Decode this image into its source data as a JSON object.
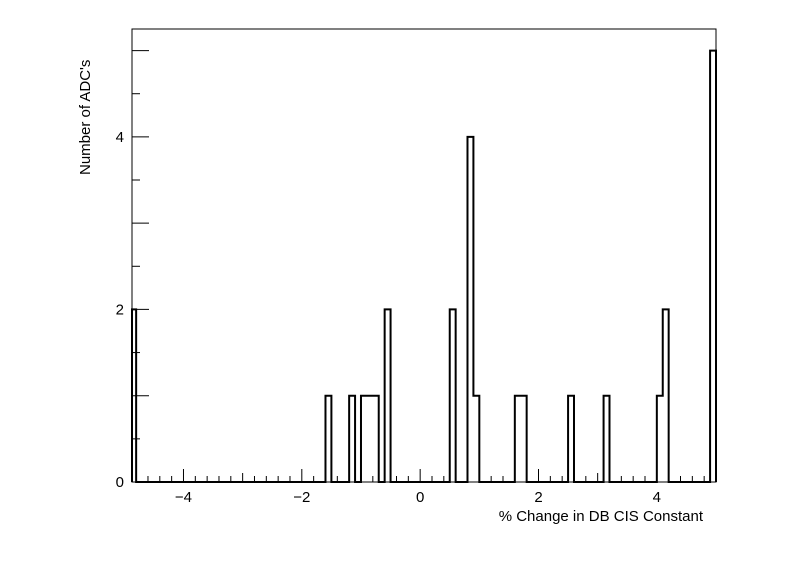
{
  "chart_data": {
    "type": "histogram",
    "xlabel": "% Change in DB CIS Constant",
    "ylabel": "Number of ADC's",
    "xlim": [
      -4.87,
      5.0
    ],
    "ylim": [
      0,
      5.25
    ],
    "bin_width": 0.1,
    "xticks": [
      -4,
      -2,
      0,
      2,
      4
    ],
    "xtick_labels": [
      "−4",
      "−2",
      "0",
      "2",
      "4"
    ],
    "yticks": [
      0,
      2,
      4
    ],
    "ytick_labels": [
      "0",
      "2",
      "4"
    ],
    "bins": [
      {
        "x0": -4.9,
        "x1": -4.8,
        "count": 2
      },
      {
        "x0": -1.6,
        "x1": -1.5,
        "count": 1
      },
      {
        "x0": -1.2,
        "x1": -1.1,
        "count": 1
      },
      {
        "x0": -1.0,
        "x1": -0.9,
        "count": 1
      },
      {
        "x0": -0.9,
        "x1": -0.8,
        "count": 1
      },
      {
        "x0": -0.8,
        "x1": -0.7,
        "count": 1
      },
      {
        "x0": -0.6,
        "x1": -0.5,
        "count": 2
      },
      {
        "x0": 0.5,
        "x1": 0.6,
        "count": 2
      },
      {
        "x0": 0.8,
        "x1": 0.9,
        "count": 4
      },
      {
        "x0": 0.9,
        "x1": 1.0,
        "count": 1
      },
      {
        "x0": 1.6,
        "x1": 1.7,
        "count": 1
      },
      {
        "x0": 1.7,
        "x1": 1.8,
        "count": 1
      },
      {
        "x0": 2.5,
        "x1": 2.6,
        "count": 1
      },
      {
        "x0": 3.1,
        "x1": 3.2,
        "count": 1
      },
      {
        "x0": 4.0,
        "x1": 4.1,
        "count": 1
      },
      {
        "x0": 4.1,
        "x1": 4.2,
        "count": 2
      },
      {
        "x0": 4.9,
        "x1": 5.0,
        "count": 5
      }
    ],
    "line_color": "#000000",
    "grid": false,
    "legend": false
  }
}
